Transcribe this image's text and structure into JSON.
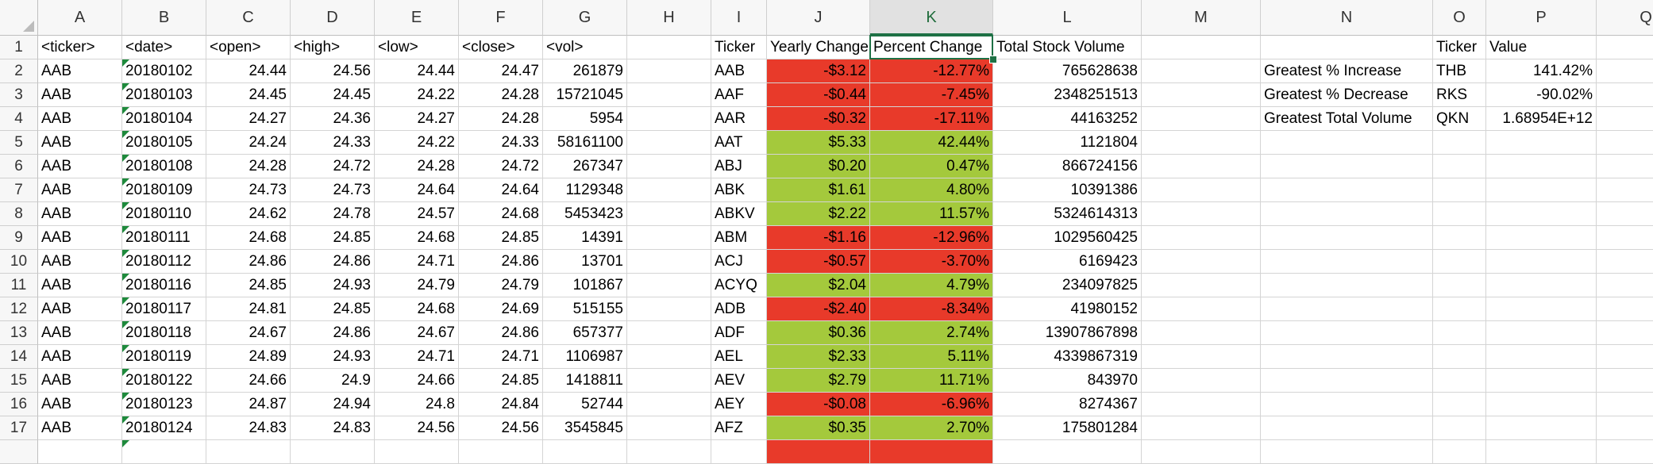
{
  "columns": [
    "A",
    "B",
    "C",
    "D",
    "E",
    "F",
    "G",
    "H",
    "I",
    "J",
    "K",
    "L",
    "M",
    "N",
    "O",
    "P",
    "Q"
  ],
  "selected_column": "K",
  "row_numbers": [
    "1",
    "2",
    "3",
    "4",
    "5",
    "6",
    "7",
    "8",
    "9",
    "10",
    "11",
    "12",
    "13",
    "14",
    "15",
    "16",
    "17"
  ],
  "raw_headers": [
    "<ticker>",
    "<date>",
    "<open>",
    "<high>",
    "<low>",
    "<close>",
    "<vol>"
  ],
  "raw_rows": [
    [
      "AAB",
      "20180102",
      "24.44",
      "24.56",
      "24.44",
      "24.47",
      "261879"
    ],
    [
      "AAB",
      "20180103",
      "24.45",
      "24.45",
      "24.22",
      "24.28",
      "15721045"
    ],
    [
      "AAB",
      "20180104",
      "24.27",
      "24.36",
      "24.27",
      "24.28",
      "5954"
    ],
    [
      "AAB",
      "20180105",
      "24.24",
      "24.33",
      "24.22",
      "24.33",
      "58161100"
    ],
    [
      "AAB",
      "20180108",
      "24.28",
      "24.72",
      "24.28",
      "24.72",
      "267347"
    ],
    [
      "AAB",
      "20180109",
      "24.73",
      "24.73",
      "24.64",
      "24.64",
      "1129348"
    ],
    [
      "AAB",
      "20180110",
      "24.62",
      "24.78",
      "24.57",
      "24.68",
      "5453423"
    ],
    [
      "AAB",
      "20180111",
      "24.68",
      "24.85",
      "24.68",
      "24.85",
      "14391"
    ],
    [
      "AAB",
      "20180112",
      "24.86",
      "24.86",
      "24.71",
      "24.86",
      "13701"
    ],
    [
      "AAB",
      "20180116",
      "24.85",
      "24.93",
      "24.79",
      "24.79",
      "101867"
    ],
    [
      "AAB",
      "20180117",
      "24.81",
      "24.85",
      "24.68",
      "24.69",
      "515155"
    ],
    [
      "AAB",
      "20180118",
      "24.67",
      "24.86",
      "24.67",
      "24.86",
      "657377"
    ],
    [
      "AAB",
      "20180119",
      "24.89",
      "24.93",
      "24.71",
      "24.71",
      "1106987"
    ],
    [
      "AAB",
      "20180122",
      "24.66",
      "24.9",
      "24.66",
      "24.85",
      "1418811"
    ],
    [
      "AAB",
      "20180123",
      "24.87",
      "24.94",
      "24.8",
      "24.84",
      "52744"
    ],
    [
      "AAB",
      "20180124",
      "24.83",
      "24.83",
      "24.56",
      "24.56",
      "3545845"
    ]
  ],
  "summary_headers": [
    "Ticker",
    "Yearly Change",
    "Percent Change",
    "Total Stock Volume"
  ],
  "summary_rows": [
    {
      "ticker": "AAB",
      "yearly_change": "-$3.12",
      "percent_change": "-12.77%",
      "volume": "765628638",
      "status": "negative"
    },
    {
      "ticker": "AAF",
      "yearly_change": "-$0.44",
      "percent_change": "-7.45%",
      "volume": "2348251513",
      "status": "negative"
    },
    {
      "ticker": "AAR",
      "yearly_change": "-$0.32",
      "percent_change": "-17.11%",
      "volume": "44163252",
      "status": "negative"
    },
    {
      "ticker": "AAT",
      "yearly_change": "$5.33",
      "percent_change": "42.44%",
      "volume": "1121804",
      "status": "positive"
    },
    {
      "ticker": "ABJ",
      "yearly_change": "$0.20",
      "percent_change": "0.47%",
      "volume": "866724156",
      "status": "positive"
    },
    {
      "ticker": "ABK",
      "yearly_change": "$1.61",
      "percent_change": "4.80%",
      "volume": "10391386",
      "status": "positive"
    },
    {
      "ticker": "ABKV",
      "yearly_change": "$2.22",
      "percent_change": "11.57%",
      "volume": "5324614313",
      "status": "positive"
    },
    {
      "ticker": "ABM",
      "yearly_change": "-$1.16",
      "percent_change": "-12.96%",
      "volume": "1029560425",
      "status": "negative"
    },
    {
      "ticker": "ACJ",
      "yearly_change": "-$0.57",
      "percent_change": "-3.70%",
      "volume": "6169423",
      "status": "negative"
    },
    {
      "ticker": "ACYQ",
      "yearly_change": "$2.04",
      "percent_change": "4.79%",
      "volume": "234097825",
      "status": "positive"
    },
    {
      "ticker": "ADB",
      "yearly_change": "-$2.40",
      "percent_change": "-8.34%",
      "volume": "41980152",
      "status": "negative"
    },
    {
      "ticker": "ADF",
      "yearly_change": "$0.36",
      "percent_change": "2.74%",
      "volume": "13907867898",
      "status": "positive"
    },
    {
      "ticker": "AEL",
      "yearly_change": "$2.33",
      "percent_change": "5.11%",
      "volume": "4339867319",
      "status": "positive"
    },
    {
      "ticker": "AEV",
      "yearly_change": "$2.79",
      "percent_change": "11.71%",
      "volume": "843970",
      "status": "positive"
    },
    {
      "ticker": "AEY",
      "yearly_change": "-$0.08",
      "percent_change": "-6.96%",
      "volume": "8274367",
      "status": "negative"
    },
    {
      "ticker": "AFZ",
      "yearly_change": "$0.35",
      "percent_change": "2.70%",
      "volume": "175801284",
      "status": "positive"
    }
  ],
  "partial_row_18_status": "negative",
  "greatest_headers": [
    "Ticker",
    "Value"
  ],
  "greatest_rows": [
    {
      "label": "Greatest % Increase",
      "ticker": "THB",
      "value": "141.42%"
    },
    {
      "label": "Greatest % Decrease",
      "ticker": "RKS",
      "value": "-90.02%"
    },
    {
      "label": "Greatest Total Volume",
      "ticker": "QKN",
      "value": "1.68954E+12"
    }
  ],
  "colors": {
    "negative": "#e83a2a",
    "positive": "#a4c93c",
    "selection": "#1e7145",
    "error_flag": "#1e8a3c"
  }
}
